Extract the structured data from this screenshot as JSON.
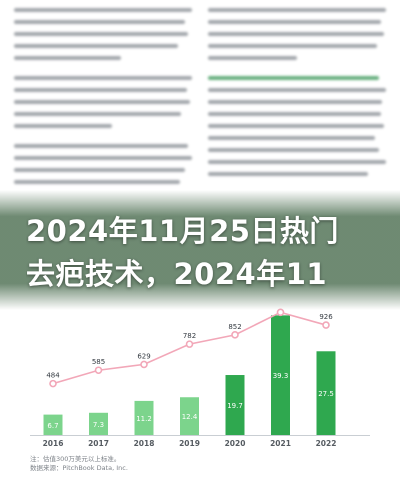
{
  "headline": {
    "line1": "2024年11月25日热门",
    "line2": "去疤技术，2024年11"
  },
  "caption": {
    "line1": "注：估值300万美元以上标准。",
    "line2": "数据来源：PitchBook Data, Inc."
  },
  "colors": {
    "bar_light": "#7cd48c",
    "bar_dark": "#2fa84f",
    "line": "#f2a7b8",
    "marker": "#f2a7b8",
    "headline_band": "#46694b"
  },
  "chart_data": {
    "type": "bar",
    "categories": [
      "2016",
      "2017",
      "2018",
      "2019",
      "2020",
      "2021",
      "2022"
    ],
    "series": [
      {
        "values": [
          6.7,
          7.3,
          11.2,
          12.4,
          19.7,
          39.3,
          27.5
        ]
      },
      {
        "values": [
          484,
          585,
          629,
          782,
          852,
          1022,
          926
        ]
      }
    ],
    "value_labels": [
      "6.7",
      "7.3",
      "11.2",
      "12.4",
      "19.7",
      "39.3",
      "27.5"
    ],
    "line_labels": [
      "484",
      "585",
      "629",
      "782",
      "852",
      "",
      "926"
    ],
    "ylim": [
      0,
      45
    ],
    "line_ylim": [
      300,
      1100
    ],
    "grid": false
  }
}
